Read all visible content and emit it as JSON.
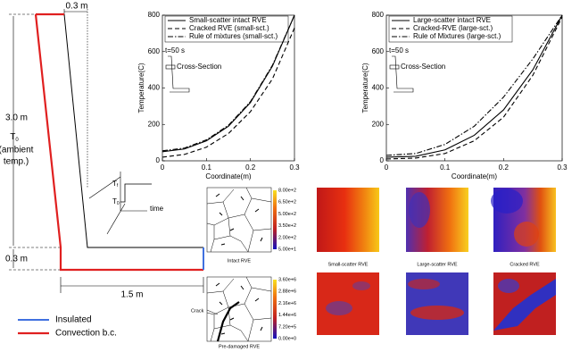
{
  "chart_data": [
    {
      "type": "line",
      "xlabel": "Coordinate(m)",
      "ylabel": "Temperature(C)",
      "xlim": [
        0,
        0.3
      ],
      "ylim": [
        0,
        800
      ],
      "xticks": [
        0,
        0.1,
        0.2,
        0.3
      ],
      "yticks": [
        0,
        200,
        400,
        600,
        800
      ],
      "x": [
        0,
        0.05,
        0.1,
        0.15,
        0.2,
        0.25,
        0.3
      ],
      "legend": "upper left",
      "annotations": [
        "t=50 s",
        "Cross-Section"
      ],
      "series": [
        {
          "name": "Small-scatter intact RVE",
          "color": "#000000",
          "line_style": "solid",
          "values": [
            50,
            65,
            110,
            190,
            320,
            520,
            800
          ]
        },
        {
          "name": "Cracked RVE (small-sct.)",
          "color": "#000000",
          "line_style": "dashed",
          "values": [
            20,
            35,
            75,
            150,
            270,
            450,
            730
          ]
        },
        {
          "name": "Rule of mixtures (small-sct.)",
          "color": "#000000",
          "line_style": "dashdot",
          "values": [
            55,
            70,
            115,
            195,
            325,
            525,
            800
          ]
        }
      ]
    },
    {
      "type": "line",
      "xlabel": "Coordinate(m)",
      "ylabel": "Temperature(C)",
      "xlim": [
        0,
        0.3
      ],
      "ylim": [
        0,
        800
      ],
      "xticks": [
        0,
        0.1,
        0.2,
        0.3
      ],
      "yticks": [
        0,
        200,
        400,
        600,
        800
      ],
      "x": [
        0,
        0.05,
        0.1,
        0.15,
        0.2,
        0.25,
        0.3
      ],
      "legend": "upper left",
      "annotations": [
        "t=50 s",
        "Cross-Section"
      ],
      "series": [
        {
          "name": "Large-scatter intact RVE",
          "color": "#000000",
          "line_style": "solid",
          "values": [
            20,
            25,
            60,
            140,
            280,
            500,
            800
          ]
        },
        {
          "name": "Cracked-RVE (large-sct.)",
          "color": "#000000",
          "line_style": "dashed",
          "values": [
            10,
            15,
            40,
            110,
            240,
            470,
            790
          ]
        },
        {
          "name": "Rule of Mixtures (large-sct.)",
          "color": "#000000",
          "line_style": "dashdot",
          "values": [
            30,
            40,
            90,
            190,
            350,
            560,
            800
          ]
        }
      ]
    }
  ],
  "wall": {
    "top_width": "0.3 m",
    "height": "3.0 m",
    "ambient": [
      "T",
      "0",
      "(ambient",
      "temp.)"
    ],
    "bottom_height": "0.3 m",
    "length": "1.5 m",
    "inset": [
      "T",
      "f",
      "T",
      "0",
      "time"
    ],
    "legend": [
      "Insulated",
      "Convection b.c."
    ]
  },
  "rve": {
    "intact": "Intact RVE",
    "predamaged": "Pre-damaged RVE",
    "crack": "Crack",
    "colorbars": [
      [
        "8.00e+2",
        "6.50e+2",
        "5.00e+2",
        "3.50e+2",
        "2.00e+2",
        "5.00e+1"
      ],
      [
        "3.60e+6",
        "2.88e+6",
        "2.16e+6",
        "1.44e+6",
        "7.20e+5",
        "0.00e+0"
      ]
    ],
    "maps": [
      "Small-scatter RVE",
      "Large-scatter RVE",
      "Cracked RVE"
    ]
  }
}
